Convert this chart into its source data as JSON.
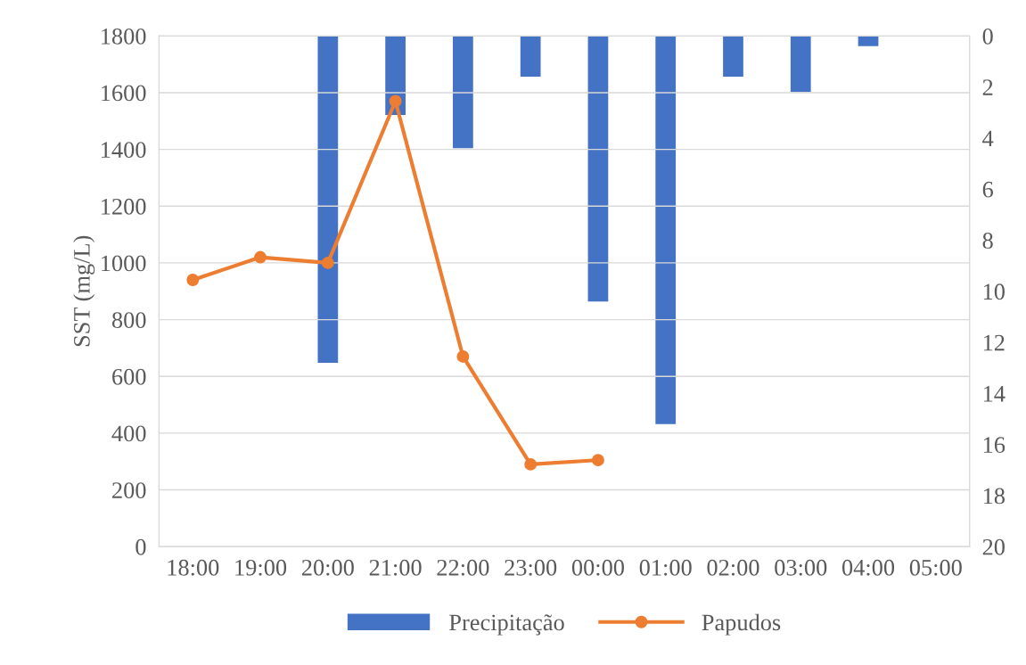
{
  "chart_data": {
    "type": "bar",
    "ylabel": "SST (mg/L)",
    "categories": [
      "18:00",
      "19:00",
      "20:00",
      "21:00",
      "22:00",
      "23:00",
      "00:00",
      "01:00",
      "02:00",
      "03:00",
      "04:00",
      "05:00"
    ],
    "series": [
      {
        "name": "Precipitação",
        "axis": "y2",
        "color": "#4472c4",
        "values": [
          null,
          null,
          12.8,
          3.1,
          4.4,
          1.6,
          10.4,
          15.2,
          1.6,
          2.2,
          0.4,
          null
        ]
      },
      {
        "name": "Papudos",
        "type": "line",
        "axis": "y",
        "color": "#ed7d31",
        "marker": "circle",
        "values": [
          940,
          1020,
          1000,
          1570,
          670,
          290,
          305,
          null,
          null,
          null,
          null,
          null
        ]
      }
    ],
    "ylim": [
      0,
      1800
    ],
    "yticks": [
      0,
      200,
      400,
      600,
      800,
      1000,
      1200,
      1400,
      1600,
      1800
    ],
    "y2lim": [
      20,
      0
    ],
    "y2ticks": [
      0,
      2,
      4,
      6,
      8,
      10,
      12,
      14,
      16,
      18,
      20
    ],
    "grid": "y",
    "legend": "bottom"
  }
}
